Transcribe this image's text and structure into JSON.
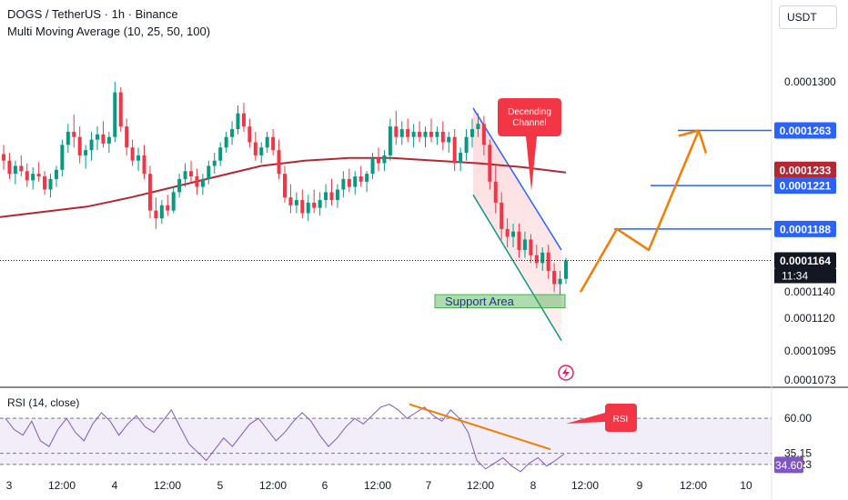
{
  "header": {
    "title": "DOGS / TetherUS · 1h · Binance",
    "indicator": "Multi Moving Average (10, 25, 50, 100)"
  },
  "price_axis": {
    "unit": "USDT",
    "ticks": [
      "0.0001300",
      "0.0001160",
      "0.0001120",
      "0.0001095",
      "0.0001073"
    ],
    "partial_tick": "0.0001140"
  },
  "price_labels": [
    {
      "text": "0.0001263",
      "color": "#2962ff"
    },
    {
      "text": "0.0001233",
      "color": "#b22833"
    },
    {
      "text": "0.0001221",
      "color": "#2962ff"
    },
    {
      "text": "0.0001188",
      "color": "#2962ff"
    },
    {
      "text": "0.0001164",
      "color": "#131722"
    }
  ],
  "current_price": {
    "value": "0.0001164",
    "countdown": "11:34"
  },
  "time_axis": {
    "ticks": [
      "3",
      "12:00",
      "4",
      "12:00",
      "5",
      "12:00",
      "6",
      "12:00",
      "7",
      "12:00",
      "8",
      "12:00",
      "9",
      "12:00",
      "10"
    ]
  },
  "annotations": {
    "channel": "Decending Channel",
    "support": "Support Area",
    "rsi_callout": "RSI"
  },
  "rsi": {
    "title": "RSI (14, close)",
    "ticks": [
      "60.00",
      "35.15",
      "27.23"
    ],
    "current_label": "34.60",
    "current_color": "#7e57c2"
  },
  "colors": {
    "up": "#089981",
    "down": "#f23645",
    "ma": "#b22833",
    "channel": "#2962ff",
    "projection": "#f57c00",
    "rsi_line": "#7e57c2",
    "rsi_band": "#7e57c2",
    "callout": "#f23645",
    "support_fill": "#4caf50"
  },
  "chart_data": {
    "type": "candlestick",
    "symbol": "DOGS / TetherUS",
    "interval": "1h",
    "ylim": [
      0.000107,
      0.0001325
    ],
    "ma_series": [
      0.0001197,
      0.0001201,
      0.0001205,
      0.0001212,
      0.000122,
      0.0001228,
      0.0001236,
      0.000124,
      0.0001242,
      0.0001242,
      0.000124,
      0.0001238,
      0.0001235,
      0.0001231
    ],
    "ohlc": [
      [
        0.0001245,
        0.0001252,
        0.0001233,
        0.000124
      ],
      [
        0.000124,
        0.0001246,
        0.0001226,
        0.000123
      ],
      [
        0.000123,
        0.000124,
        0.0001222,
        0.0001236
      ],
      [
        0.0001236,
        0.0001244,
        0.0001228,
        0.0001232
      ],
      [
        0.0001232,
        0.0001238,
        0.000122,
        0.0001225
      ],
      [
        0.0001225,
        0.0001235,
        0.0001218,
        0.000123
      ],
      [
        0.000123,
        0.0001239,
        0.0001224,
        0.0001228
      ],
      [
        0.0001228,
        0.0001232,
        0.0001214,
        0.0001218
      ],
      [
        0.0001218,
        0.000123,
        0.0001212,
        0.0001226
      ],
      [
        0.0001226,
        0.0001236,
        0.000122,
        0.0001233
      ],
      [
        0.0001233,
        0.0001256,
        0.0001228,
        0.0001252
      ],
      [
        0.0001252,
        0.0001268,
        0.0001246,
        0.0001262
      ],
      [
        0.0001262,
        0.0001275,
        0.000125,
        0.0001258
      ],
      [
        0.0001258,
        0.0001266,
        0.0001238,
        0.0001244
      ],
      [
        0.0001244,
        0.0001252,
        0.0001234,
        0.0001248
      ],
      [
        0.0001248,
        0.0001262,
        0.000124,
        0.0001256
      ],
      [
        0.0001256,
        0.0001266,
        0.0001248,
        0.000126
      ],
      [
        0.000126,
        0.000127,
        0.000125,
        0.0001253
      ],
      [
        0.0001253,
        0.0001262,
        0.0001246,
        0.0001258
      ],
      [
        0.0001258,
        0.00013,
        0.0001254,
        0.0001292
      ],
      [
        0.0001292,
        0.0001296,
        0.0001262,
        0.0001266
      ],
      [
        0.0001266,
        0.0001272,
        0.0001244,
        0.000125
      ],
      [
        0.000125,
        0.0001256,
        0.0001236,
        0.000124
      ],
      [
        0.000124,
        0.000125,
        0.0001232,
        0.0001244
      ],
      [
        0.0001244,
        0.0001252,
        0.0001226,
        0.000123
      ],
      [
        0.000123,
        0.0001236,
        0.0001196,
        0.0001202
      ],
      [
        0.0001202,
        0.0001212,
        0.0001188,
        0.0001196
      ],
      [
        0.0001196,
        0.000121,
        0.0001192,
        0.0001206
      ],
      [
        0.0001206,
        0.0001214,
        0.0001198,
        0.0001202
      ],
      [
        0.0001202,
        0.000122,
        0.00012,
        0.0001216
      ],
      [
        0.0001216,
        0.000123,
        0.0001212,
        0.0001226
      ],
      [
        0.0001226,
        0.0001238,
        0.000122,
        0.0001232
      ],
      [
        0.0001232,
        0.000124,
        0.0001224,
        0.0001228
      ],
      [
        0.0001228,
        0.0001234,
        0.0001214,
        0.000122
      ],
      [
        0.000122,
        0.000123,
        0.0001214,
        0.0001226
      ],
      [
        0.0001226,
        0.000124,
        0.0001222,
        0.0001236
      ],
      [
        0.0001236,
        0.0001246,
        0.000123,
        0.000124
      ],
      [
        0.000124,
        0.0001254,
        0.0001236,
        0.000125
      ],
      [
        0.000125,
        0.0001262,
        0.0001246,
        0.0001258
      ],
      [
        0.0001258,
        0.000127,
        0.0001252,
        0.0001264
      ],
      [
        0.0001264,
        0.0001282,
        0.000126,
        0.0001276
      ],
      [
        0.0001276,
        0.0001284,
        0.0001262,
        0.0001266
      ],
      [
        0.0001266,
        0.0001272,
        0.000125,
        0.0001254
      ],
      [
        0.0001254,
        0.0001262,
        0.000124,
        0.0001244
      ],
      [
        0.0001244,
        0.0001254,
        0.0001238,
        0.000125
      ],
      [
        0.000125,
        0.0001262,
        0.0001246,
        0.0001258
      ],
      [
        0.0001258,
        0.0001264,
        0.0001244,
        0.0001248
      ],
      [
        0.0001248,
        0.0001256,
        0.0001226,
        0.000123
      ],
      [
        0.000123,
        0.0001236,
        0.0001208,
        0.0001212
      ],
      [
        0.0001212,
        0.0001222,
        0.00012,
        0.0001206
      ],
      [
        0.0001206,
        0.0001216,
        0.00012,
        0.000121
      ],
      [
        0.000121,
        0.0001218,
        0.0001196,
        0.00012
      ],
      [
        0.00012,
        0.0001214,
        0.0001194,
        0.0001208
      ],
      [
        0.0001208,
        0.0001218,
        0.00012,
        0.0001204
      ],
      [
        0.0001204,
        0.0001216,
        0.0001198,
        0.000121
      ],
      [
        0.000121,
        0.0001222,
        0.0001204,
        0.0001216
      ],
      [
        0.0001216,
        0.0001226,
        0.0001206,
        0.000121
      ],
      [
        0.000121,
        0.0001222,
        0.0001204,
        0.0001218
      ],
      [
        0.0001218,
        0.0001232,
        0.0001212,
        0.0001226
      ],
      [
        0.0001226,
        0.0001234,
        0.0001216,
        0.000122
      ],
      [
        0.000122,
        0.0001232,
        0.0001214,
        0.0001228
      ],
      [
        0.0001228,
        0.0001236,
        0.000122,
        0.0001224
      ],
      [
        0.0001224,
        0.0001232,
        0.0001216,
        0.000123
      ],
      [
        0.000123,
        0.0001246,
        0.0001226,
        0.0001242
      ],
      [
        0.0001242,
        0.000125,
        0.0001232,
        0.0001238
      ],
      [
        0.0001238,
        0.0001248,
        0.0001232,
        0.0001244
      ],
      [
        0.0001244,
        0.0001272,
        0.000124,
        0.0001266
      ],
      [
        0.0001266,
        0.0001278,
        0.0001252,
        0.0001258
      ],
      [
        0.0001258,
        0.000127,
        0.0001252,
        0.0001264
      ],
      [
        0.0001264,
        0.0001272,
        0.0001254,
        0.0001258
      ],
      [
        0.0001258,
        0.0001268,
        0.000125,
        0.0001262
      ],
      [
        0.0001262,
        0.000127,
        0.0001254,
        0.0001258
      ],
      [
        0.0001258,
        0.0001266,
        0.000125,
        0.0001262
      ],
      [
        0.0001262,
        0.0001272,
        0.0001254,
        0.0001258
      ],
      [
        0.0001258,
        0.0001266,
        0.0001252,
        0.0001262
      ],
      [
        0.0001262,
        0.000127,
        0.0001248,
        0.0001254
      ],
      [
        0.0001254,
        0.0001262,
        0.0001246,
        0.0001258
      ],
      [
        0.0001258,
        0.0001264,
        0.0001232,
        0.0001238
      ],
      [
        0.0001238,
        0.000125,
        0.0001232,
        0.0001246
      ],
      [
        0.0001246,
        0.0001264,
        0.000124,
        0.0001258
      ],
      [
        0.0001258,
        0.0001272,
        0.000125,
        0.0001264
      ],
      [
        0.0001264,
        0.0001276,
        0.0001258,
        0.0001268
      ],
      [
        0.0001268,
        0.0001274,
        0.0001244,
        0.0001252
      ],
      [
        0.0001252,
        0.0001256,
        0.0001218,
        0.0001224
      ],
      [
        0.0001224,
        0.0001236,
        0.00012,
        0.0001208
      ],
      [
        0.0001208,
        0.0001216,
        0.000118,
        0.0001188
      ],
      [
        0.0001188,
        0.0001196,
        0.0001174,
        0.0001182
      ],
      [
        0.0001182,
        0.0001192,
        0.0001174,
        0.0001186
      ],
      [
        0.0001186,
        0.0001192,
        0.0001166,
        0.0001172
      ],
      [
        0.0001172,
        0.0001186,
        0.0001166,
        0.000118
      ],
      [
        0.000118,
        0.0001184,
        0.0001162,
        0.0001168
      ],
      [
        0.0001168,
        0.0001176,
        0.0001158,
        0.0001162
      ],
      [
        0.0001162,
        0.0001174,
        0.0001156,
        0.000117
      ],
      [
        0.000117,
        0.0001176,
        0.000115,
        0.0001156
      ],
      [
        0.0001156,
        0.0001162,
        0.000114,
        0.0001146
      ],
      [
        0.0001146,
        0.0001156,
        0.0001138,
        0.000115
      ],
      [
        0.000115,
        0.0001166,
        0.0001146,
        0.0001164
      ]
    ],
    "levels": [
      0.0001263,
      0.0001221,
      0.0001188
    ],
    "projection": [
      0.000114,
      0.0001188,
      0.0001172,
      0.0001263,
      0.0001233
    ],
    "channel_upper": [
      0.000128,
      0.0001172
    ],
    "channel_lower": [
      0.0001214,
      0.0001103
    ],
    "support_zone": [
      0.0001128,
      0.0001138
    ],
    "rsi_values": [
      60,
      52,
      48,
      58,
      44,
      40,
      52,
      60,
      50,
      44,
      56,
      64,
      58,
      48,
      56,
      62,
      54,
      50,
      58,
      66,
      54,
      42,
      36,
      30,
      38,
      46,
      40,
      48,
      56,
      60,
      52,
      44,
      50,
      58,
      64,
      58,
      48,
      40,
      46,
      54,
      60,
      56,
      62,
      68,
      70,
      66,
      60,
      64,
      68,
      62,
      58,
      66,
      60,
      50,
      30,
      24,
      28,
      32,
      26,
      22,
      28,
      32,
      26,
      30,
      34.6
    ],
    "rsi_trendline": [
      70,
      38
    ],
    "rsi_ylim": [
      20,
      75
    ]
  }
}
